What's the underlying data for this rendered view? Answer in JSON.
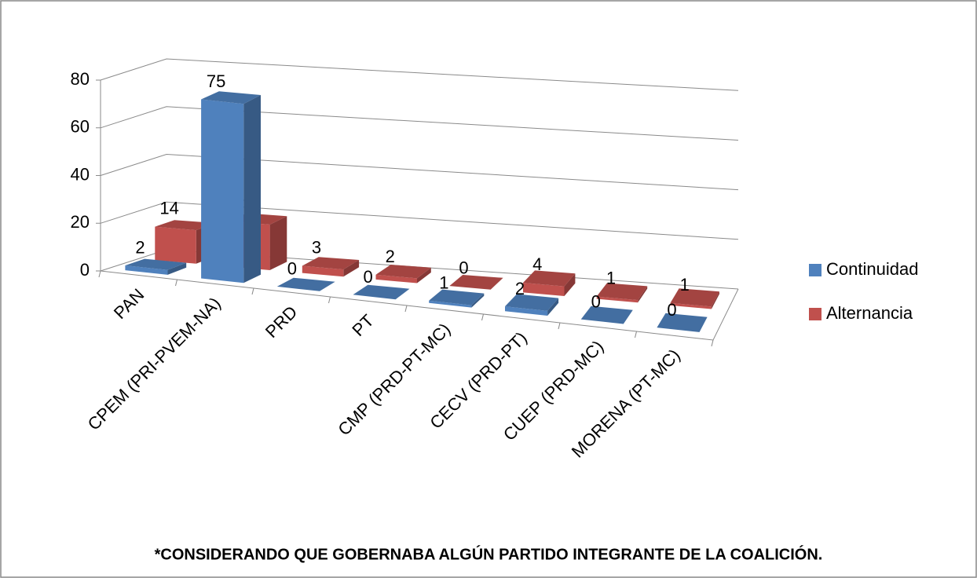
{
  "chart_data": {
    "type": "bar3d",
    "categories": [
      "PAN",
      "CPEM (PRI-PVEM-NA)",
      "PRD",
      "PT",
      "CMP (PRD-PT-MC)",
      "CECV (PRD-PT)",
      "CUEP (PRD-MC)",
      "MORENA (PT-MC)"
    ],
    "series": [
      {
        "name": "Continuidad",
        "color": "#4f81bd",
        "values": [
          2,
          75,
          0,
          0,
          1,
          2,
          0,
          0
        ]
      },
      {
        "name": "Alternancia",
        "color": "#c0504d",
        "values": [
          14,
          19,
          3,
          2,
          0,
          4,
          1,
          1
        ]
      }
    ],
    "ylim": [
      0,
      80
    ],
    "yticks": [
      0,
      20,
      40,
      60,
      80
    ],
    "grid": true,
    "legend": "right",
    "annotation": "*CONSIDERANDO QUE GOBERNABA ALGÚN PARTIDO INTEGRANTE DE LA COALICIÓN."
  }
}
